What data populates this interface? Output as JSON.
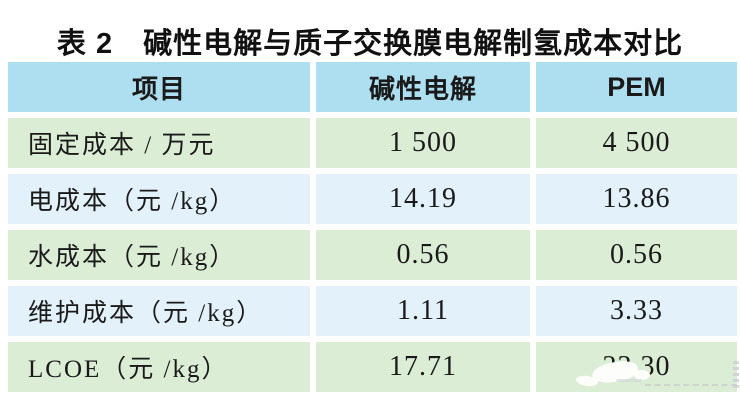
{
  "chart_data": {
    "type": "table",
    "title": "表 2　碱性电解与质子交换膜电解制氢成本对比",
    "columns": [
      "项目",
      "碱性电解",
      "PEM"
    ],
    "rows": [
      [
        "固定成本 / 万元",
        "1 500",
        "4 500"
      ],
      [
        "电成本（元 /kg）",
        "14.19",
        "13.86"
      ],
      [
        "水成本（元 /kg）",
        "0.56",
        "0.56"
      ],
      [
        "维护成本（元 /kg）",
        "1.11",
        "3.33"
      ],
      [
        "LCOE（元 /kg）",
        "17.71",
        "23.30"
      ]
    ],
    "layout_hints": {
      "header_background": "#aedff0",
      "odd_row_background": "#dcedd5",
      "even_row_background": "#e2f1fa",
      "grid_gap_color": "#ffffff",
      "note": "PEM LCOE value partially obscured by white smudge in source image"
    }
  },
  "colors": {
    "header_blue": "#aedff0",
    "row_green": "#dcedd5",
    "row_blue": "#e2f1fa",
    "text": "#1a1a1a",
    "watermark_gray": "#c9ced2"
  }
}
